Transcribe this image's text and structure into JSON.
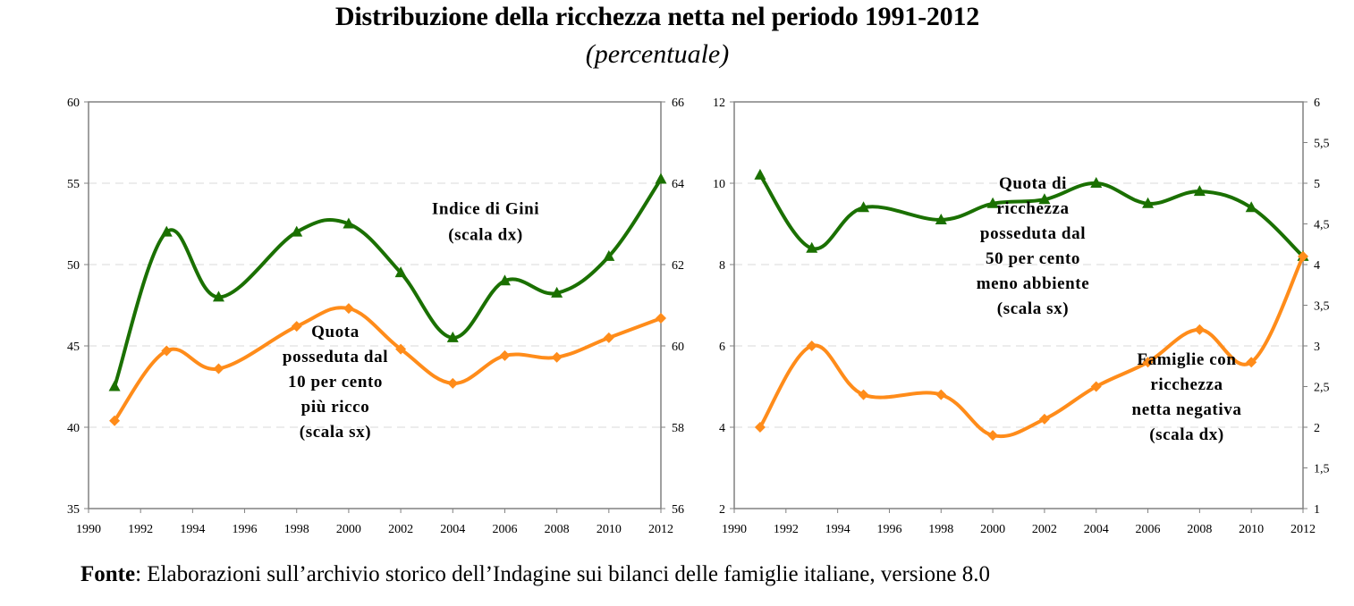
{
  "title": "Distribuzione della ricchezza netta nel periodo 1991-2012",
  "subtitle": "(percentuale)",
  "footer": {
    "label": "Fonte",
    "text": ": Elaborazioni sull’archivio storico dell’Indagine sui bilanci delle famiglie italiane, versione 8.0"
  },
  "colors": {
    "green": "#1a7000",
    "orange": "#ff8c1a",
    "axis": "#808080",
    "grid": "#d9d9d9"
  },
  "chart_data": [
    {
      "type": "line",
      "x": [
        1991,
        1993,
        1995,
        1998,
        2000,
        2002,
        2004,
        2006,
        2008,
        2010,
        2012
      ],
      "xlim": [
        1990,
        2012
      ],
      "xticks": [
        "1990",
        "1992",
        "1994",
        "1996",
        "1998",
        "2000",
        "2002",
        "2004",
        "2006",
        "2008",
        "2010",
        "2012"
      ],
      "ylim_left": [
        35,
        60
      ],
      "yticks_left": [
        "35",
        "40",
        "45",
        "50",
        "55",
        "60"
      ],
      "ylim_right": [
        56,
        66
      ],
      "yticks_right": [
        "56",
        "58",
        "60",
        "62",
        "64",
        "66"
      ],
      "grid": "horizontal dashed",
      "series": [
        {
          "name": "Indice di Gini (scala dx)",
          "axis": "right",
          "color": "green",
          "marker": "triangle",
          "values": [
            59.0,
            62.8,
            61.2,
            62.8,
            63.0,
            61.8,
            60.2,
            61.6,
            61.3,
            62.2,
            64.1
          ],
          "annotation": [
            "Indice di Gini",
            "(scala dx)"
          ]
        },
        {
          "name": "Quota posseduta dal 10 per cento più ricco (scala sx)",
          "axis": "left",
          "color": "orange",
          "marker": "diamond",
          "values": [
            40.4,
            44.7,
            43.6,
            46.2,
            47.3,
            44.8,
            42.7,
            44.4,
            44.3,
            45.5,
            46.7
          ],
          "annotation": [
            "Quota",
            "posseduta dal",
            "10 per cento",
            "più ricco",
            "(scala sx)"
          ]
        }
      ]
    },
    {
      "type": "line",
      "x": [
        1991,
        1993,
        1995,
        1998,
        2000,
        2002,
        2004,
        2006,
        2008,
        2010,
        2012
      ],
      "xlim": [
        1990,
        2012
      ],
      "xticks": [
        "1990",
        "1992",
        "1994",
        "1996",
        "1998",
        "2000",
        "2002",
        "2004",
        "2006",
        "2008",
        "2010",
        "2012"
      ],
      "ylim_left": [
        2,
        12
      ],
      "yticks_left": [
        "2",
        "4",
        "6",
        "8",
        "10",
        "12"
      ],
      "ylim_right": [
        1,
        6
      ],
      "yticks_right": [
        "1",
        "1,5",
        "2",
        "2,5",
        "3",
        "3,5",
        "4",
        "4,5",
        "5",
        "5,5",
        "6"
      ],
      "grid": "horizontal dashed",
      "series": [
        {
          "name": "Quota di ricchezza posseduta dal 50 per cento meno abbiente (scala sx)",
          "axis": "left",
          "color": "green",
          "marker": "triangle",
          "values": [
            10.2,
            8.4,
            9.4,
            9.1,
            9.5,
            9.6,
            10.0,
            9.5,
            9.8,
            9.4,
            8.2
          ],
          "annotation": [
            "Quota di",
            "ricchezza",
            "posseduta dal",
            "50 per cento",
            "meno abbiente",
            "(scala sx)"
          ]
        },
        {
          "name": "Famiglie con ricchezza netta negativa (scala dx)",
          "axis": "right",
          "color": "orange",
          "marker": "diamond",
          "values": [
            2.0,
            3.0,
            2.4,
            2.4,
            1.9,
            2.1,
            2.5,
            2.8,
            3.2,
            2.8,
            4.1
          ],
          "annotation": [
            "Famiglie con",
            "ricchezza",
            "netta negativa",
            "(scala dx)"
          ]
        }
      ]
    }
  ]
}
